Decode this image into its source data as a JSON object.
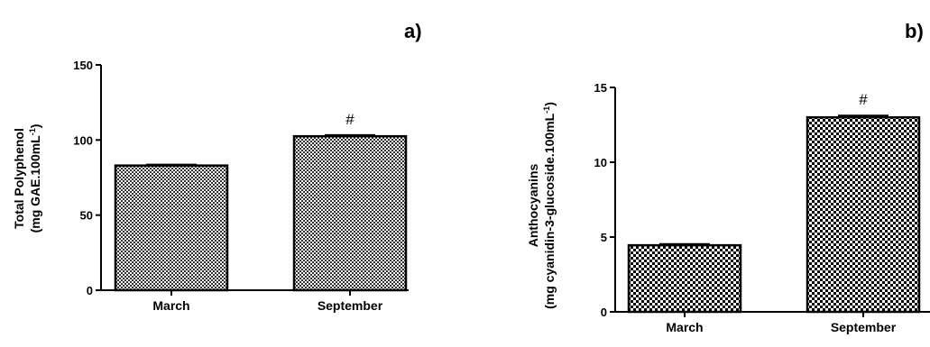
{
  "chart_data": [
    {
      "type": "bar",
      "panel": "a)",
      "categories": [
        "March",
        "September"
      ],
      "values": [
        83,
        102.5
      ],
      "errors": [
        0.6,
        0.8
      ],
      "annotations": [
        "",
        "#"
      ],
      "ylabel_lines": [
        "Total Polyphenol",
        "(mg GAE.100mL",
        "-1",
        ")"
      ],
      "ylim": [
        0,
        150
      ],
      "yticks": [
        0,
        50,
        100,
        150
      ],
      "pattern": "checkerboard",
      "grid": false,
      "legend": "none"
    },
    {
      "type": "bar",
      "panel": "b)",
      "categories": [
        "March",
        "September"
      ],
      "values": [
        4.45,
        13.0
      ],
      "errors": [
        0.08,
        0.12
      ],
      "annotations": [
        "",
        "#"
      ],
      "ylabel_lines": [
        "Anthocyanins",
        "(mg cyanidin-3-glucoside.100mL",
        "-1",
        ")"
      ],
      "ylim": [
        0,
        15
      ],
      "yticks": [
        0,
        5,
        10,
        15
      ],
      "pattern": "checkerboard",
      "grid": false,
      "legend": "none"
    }
  ]
}
